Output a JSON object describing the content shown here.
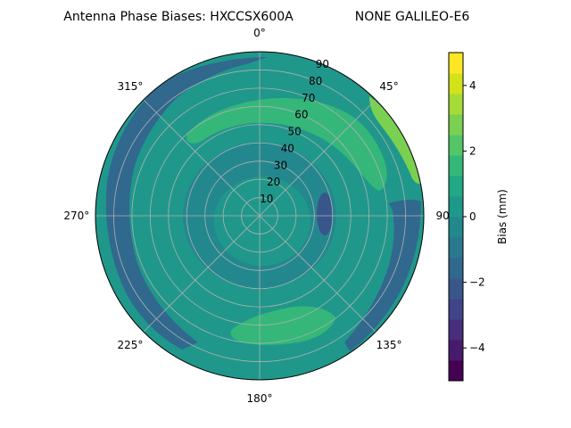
{
  "chart_data": {
    "type": "polar-contour",
    "title": "Antenna Phase Biases: HXCCSX600A",
    "subtitle": "NONE GALILEO-E6",
    "theta_direction": "clockwise",
    "theta_zero": "top",
    "angle_ticks": [
      "0°",
      "45°",
      "90",
      "135°",
      "180°",
      "225°",
      "270°",
      "315°"
    ],
    "radial_ticks": [
      "10",
      "20",
      "30",
      "40",
      "50",
      "60",
      "70",
      "80",
      "90"
    ],
    "r_range": [
      0,
      90
    ],
    "grid": true,
    "colorbar": {
      "label": "Bias (mm)",
      "range": [
        -5,
        5
      ],
      "ticks": [
        "−4",
        "−2",
        "0",
        "2",
        "4"
      ],
      "levels": [
        -5,
        -4.375,
        -3.75,
        -3.125,
        -2.5,
        -1.875,
        -1.25,
        -0.625,
        0,
        0.625,
        1.25,
        1.875,
        2.5,
        3.125,
        3.75,
        4.375,
        5
      ],
      "colors": [
        "#440154",
        "#481a6c",
        "#472f7d",
        "#414487",
        "#39568c",
        "#31688e",
        "#2a788e",
        "#23888e",
        "#1f988b",
        "#22a884",
        "#35b779",
        "#54c568",
        "#7ad151",
        "#a5db36",
        "#d2e21b",
        "#fde725"
      ]
    },
    "zones": [
      {
        "name": "base",
        "value": 0.3
      },
      {
        "name": "outer-west-ring",
        "value": -1.5
      },
      {
        "name": "outer-east-ring",
        "value": -1.4
      },
      {
        "name": "north-east-plateau",
        "value": 1.6
      },
      {
        "name": "south-plateau",
        "value": 1.5
      },
      {
        "name": "north-east-rim",
        "value": 3.1
      },
      {
        "name": "inner-ring",
        "value": -0.5
      },
      {
        "name": "center-patch",
        "value": 0.6
      },
      {
        "name": "east-pocket",
        "value": -2.0
      }
    ]
  }
}
